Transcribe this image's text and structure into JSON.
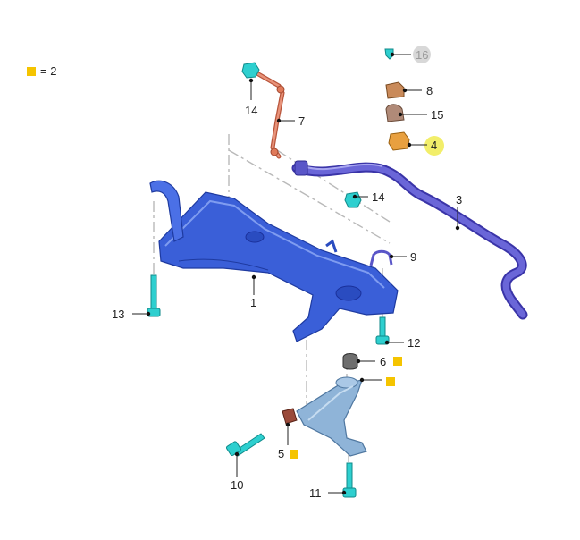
{
  "legend": {
    "text": "= 2",
    "marker_color": "#f5c400",
    "marker_icon": "square-marker"
  },
  "colors": {
    "subframe": "#3a5fd8",
    "stabilizer_bar": "#6a66d8",
    "link": "#e07a5a",
    "fastener": "#2ecfcf",
    "bushing": "#e8a040",
    "control_arm": "#8fb4d8",
    "bump_stop": "#6e6e6e",
    "small_bushing": "#9a4a3a",
    "highlight": "#f2ee6a",
    "greyed": "#d8d8d8",
    "marker": "#f5c400"
  },
  "callouts": [
    {
      "id": "1",
      "label": "1"
    },
    {
      "id": "3",
      "label": "3"
    },
    {
      "id": "4",
      "label": "4",
      "highlighted": true
    },
    {
      "id": "5",
      "label": "5",
      "marker": true
    },
    {
      "id": "6",
      "label": "6",
      "marker": true
    },
    {
      "id": "7",
      "label": "7"
    },
    {
      "id": "8",
      "label": "8"
    },
    {
      "id": "9",
      "label": "9"
    },
    {
      "id": "10",
      "label": "10"
    },
    {
      "id": "11",
      "label": "11"
    },
    {
      "id": "12",
      "label": "12"
    },
    {
      "id": "13",
      "label": "13"
    },
    {
      "id": "14a",
      "label": "14"
    },
    {
      "id": "14b",
      "label": "14"
    },
    {
      "id": "15",
      "label": "15"
    },
    {
      "id": "16",
      "label": "16",
      "greyed": true
    }
  ],
  "arm_marker": {
    "marker": true
  }
}
